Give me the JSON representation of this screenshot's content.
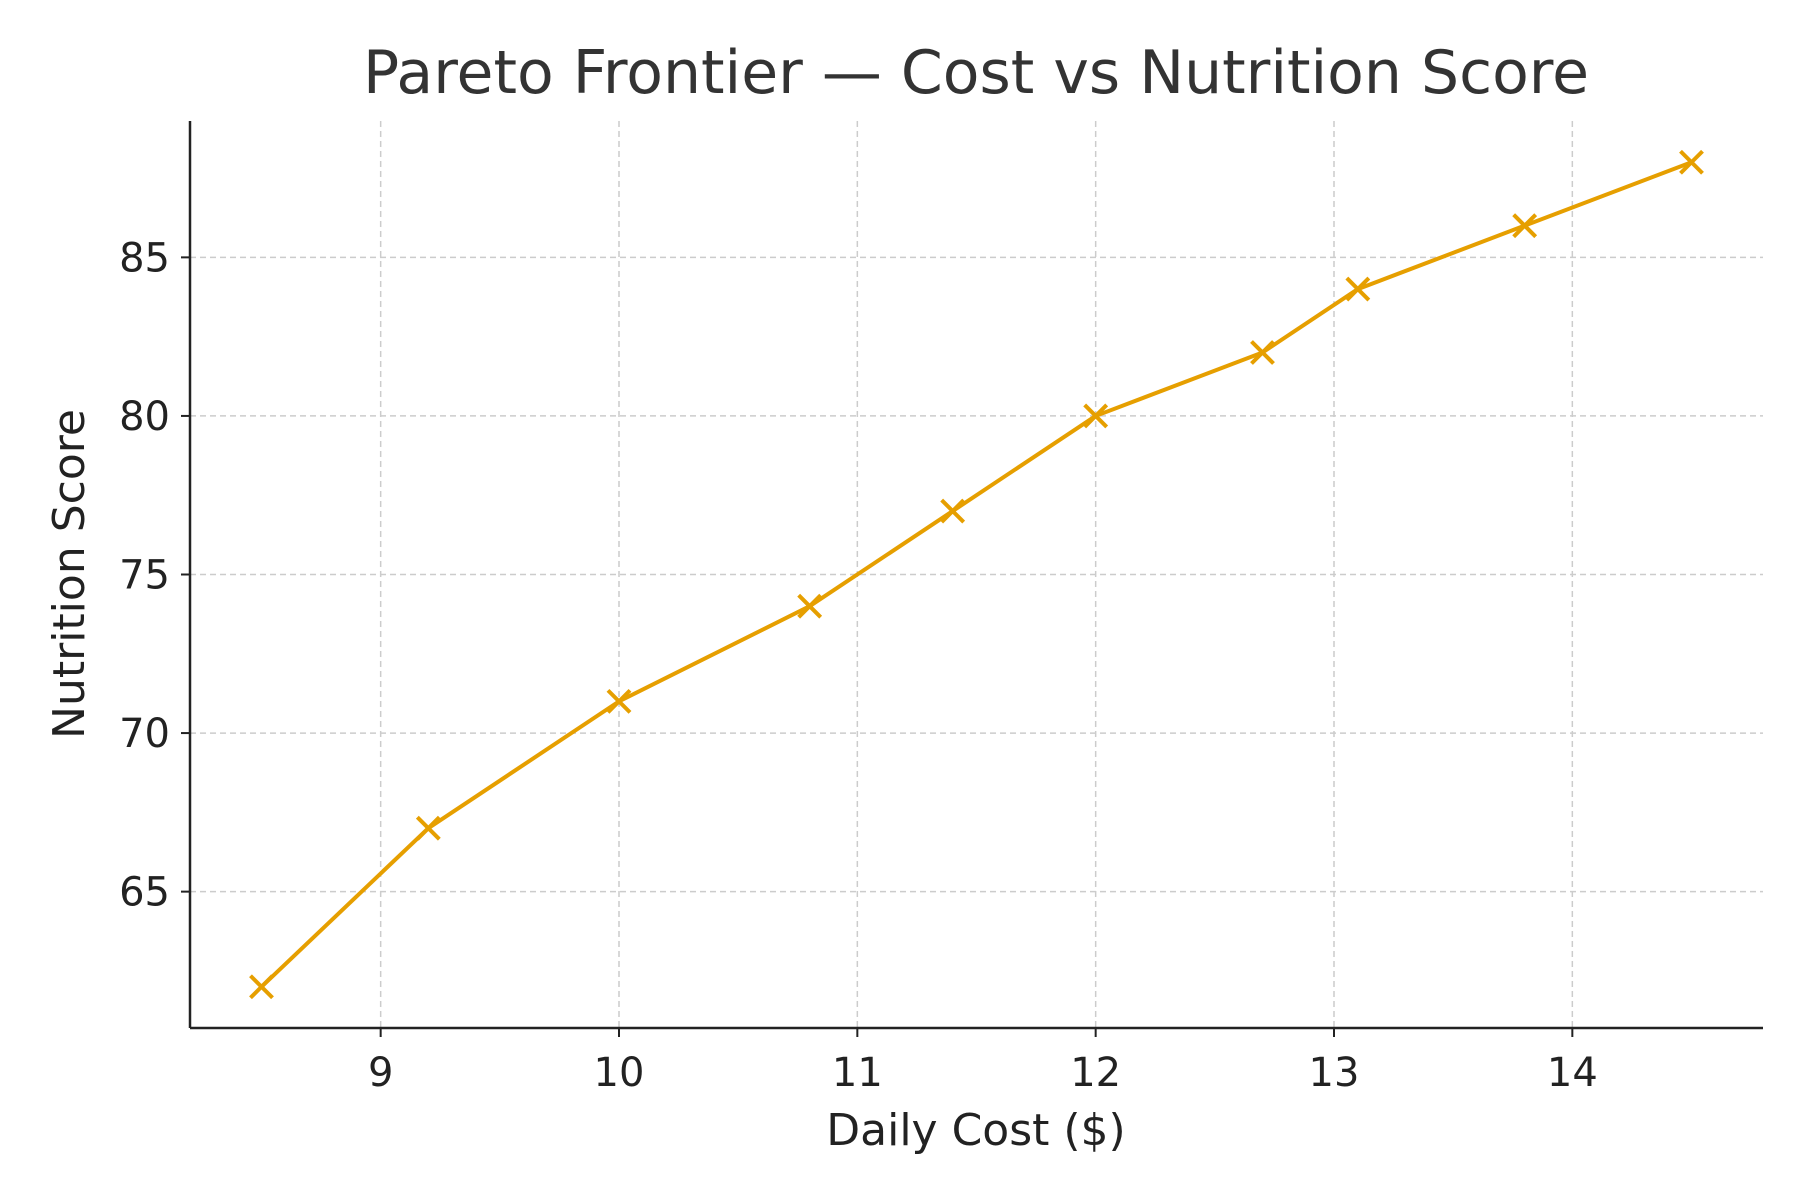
{
  "chart_data": {
    "type": "line",
    "title": "Pareto Frontier — Cost vs Nutrition Score",
    "xlabel": "Daily Cost ($)",
    "ylabel": "Nutrition Score",
    "xlim": [
      8.2,
      14.8
    ],
    "ylim": [
      60.7,
      89.3
    ],
    "xticks": [
      9,
      10,
      11,
      12,
      13,
      14
    ],
    "yticks": [
      65,
      70,
      75,
      80,
      85
    ],
    "grid": true,
    "marker": "x",
    "color": "#E69F00",
    "series": [
      {
        "x": [
          8.5,
          9.2,
          10.0,
          10.8,
          11.4,
          12.0,
          12.7,
          13.1,
          13.8,
          14.5
        ],
        "y": [
          62,
          67,
          71,
          74,
          77,
          80,
          82,
          84,
          86,
          88
        ]
      }
    ]
  }
}
